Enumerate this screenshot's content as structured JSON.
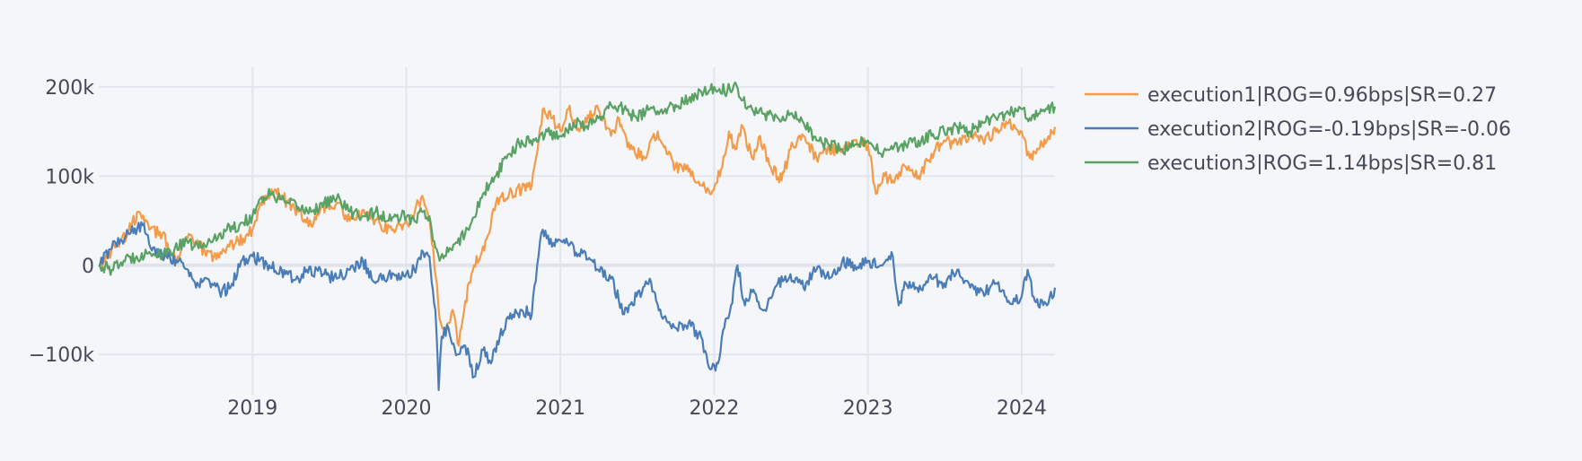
{
  "chart_data": {
    "type": "line",
    "title": "",
    "xlabel": "",
    "ylabel": "",
    "x_ticks": [
      {
        "label": "2019",
        "date": "2019-01-01"
      },
      {
        "label": "2020",
        "date": "2020-01-01"
      },
      {
        "label": "2021",
        "date": "2021-01-01"
      },
      {
        "label": "2022",
        "date": "2022-01-01"
      },
      {
        "label": "2023",
        "date": "2023-01-01"
      },
      {
        "label": "2024",
        "date": "2024-01-01"
      }
    ],
    "y_ticks": [
      {
        "label": "200k",
        "value": 200000
      },
      {
        "label": "100k",
        "value": 100000
      },
      {
        "label": "0",
        "value": 0
      },
      {
        "label": "−100k",
        "value": -100000
      }
    ],
    "xlim": [
      "2018-01-01",
      "2024-03-20"
    ],
    "ylim": [
      -145000,
      222000
    ],
    "grid": true,
    "legend_position": "right",
    "series": [
      {
        "name": "execution1|ROG=0.96bps|SR=0.27",
        "color": "#f39b48",
        "points": [
          [
            "2018-01-01",
            0
          ],
          [
            "2018-02-15",
            25000
          ],
          [
            "2018-03-10",
            35000
          ],
          [
            "2018-04-05",
            60000
          ],
          [
            "2018-05-01",
            40000
          ],
          [
            "2018-06-01",
            35000
          ],
          [
            "2018-07-05",
            5000
          ],
          [
            "2018-07-25",
            30000
          ],
          [
            "2018-08-20",
            25000
          ],
          [
            "2018-09-10",
            15000
          ],
          [
            "2018-10-01",
            10000
          ],
          [
            "2018-11-01",
            20000
          ],
          [
            "2018-12-10",
            30000
          ],
          [
            "2019-01-01",
            40000
          ],
          [
            "2019-01-20",
            70000
          ],
          [
            "2019-02-15",
            85000
          ],
          [
            "2019-03-15",
            75000
          ],
          [
            "2019-04-20",
            60000
          ],
          [
            "2019-05-20",
            45000
          ],
          [
            "2019-06-15",
            65000
          ],
          [
            "2019-07-20",
            70000
          ],
          [
            "2019-08-20",
            50000
          ],
          [
            "2019-10-01",
            60000
          ],
          [
            "2019-11-01",
            45000
          ],
          [
            "2019-12-01",
            40000
          ],
          [
            "2020-01-10",
            50000
          ],
          [
            "2020-02-05",
            75000
          ],
          [
            "2020-02-20",
            60000
          ],
          [
            "2020-03-05",
            20000
          ],
          [
            "2020-03-20",
            -60000
          ],
          [
            "2020-04-05",
            -70000
          ],
          [
            "2020-04-20",
            -50000
          ],
          [
            "2020-05-05",
            -90000
          ],
          [
            "2020-05-20",
            -40000
          ],
          [
            "2020-06-10",
            0
          ],
          [
            "2020-06-25",
            10000
          ],
          [
            "2020-07-10",
            30000
          ],
          [
            "2020-08-01",
            70000
          ],
          [
            "2020-09-01",
            80000
          ],
          [
            "2020-10-01",
            85000
          ],
          [
            "2020-10-25",
            90000
          ],
          [
            "2020-11-08",
            130000
          ],
          [
            "2020-11-20",
            175000
          ],
          [
            "2020-12-10",
            165000
          ],
          [
            "2021-01-01",
            150000
          ],
          [
            "2021-01-20",
            175000
          ],
          [
            "2021-02-15",
            150000
          ],
          [
            "2021-03-10",
            165000
          ],
          [
            "2021-04-01",
            175000
          ],
          [
            "2021-05-01",
            145000
          ],
          [
            "2021-05-20",
            165000
          ],
          [
            "2021-06-15",
            130000
          ],
          [
            "2021-07-20",
            120000
          ],
          [
            "2021-08-20",
            150000
          ],
          [
            "2021-09-10",
            125000
          ],
          [
            "2021-10-01",
            110000
          ],
          [
            "2021-11-01",
            105000
          ],
          [
            "2021-12-01",
            90000
          ],
          [
            "2021-12-25",
            80000
          ],
          [
            "2022-01-20",
            110000
          ],
          [
            "2022-02-05",
            150000
          ],
          [
            "2022-02-20",
            130000
          ],
          [
            "2022-03-10",
            155000
          ],
          [
            "2022-04-01",
            120000
          ],
          [
            "2022-04-20",
            145000
          ],
          [
            "2022-05-15",
            110000
          ],
          [
            "2022-06-10",
            95000
          ],
          [
            "2022-07-01",
            130000
          ],
          [
            "2022-08-01",
            145000
          ],
          [
            "2022-09-01",
            120000
          ],
          [
            "2022-10-01",
            130000
          ],
          [
            "2022-11-01",
            130000
          ],
          [
            "2022-12-01",
            140000
          ],
          [
            "2023-01-01",
            135000
          ],
          [
            "2023-01-20",
            80000
          ],
          [
            "2023-02-10",
            100000
          ],
          [
            "2023-03-01",
            95000
          ],
          [
            "2023-04-01",
            110000
          ],
          [
            "2023-05-01",
            100000
          ],
          [
            "2023-06-01",
            125000
          ],
          [
            "2023-07-01",
            140000
          ],
          [
            "2023-08-01",
            135000
          ],
          [
            "2023-09-01",
            145000
          ],
          [
            "2023-10-01",
            140000
          ],
          [
            "2023-11-01",
            150000
          ],
          [
            "2023-12-01",
            160000
          ],
          [
            "2024-01-01",
            150000
          ],
          [
            "2024-01-20",
            120000
          ],
          [
            "2024-02-10",
            130000
          ],
          [
            "2024-03-01",
            140000
          ],
          [
            "2024-03-20",
            155000
          ]
        ]
      },
      {
        "name": "execution2|ROG=-0.19bps|SR=-0.06",
        "color": "#4a7db7",
        "points": [
          [
            "2018-01-01",
            0
          ],
          [
            "2018-02-10",
            25000
          ],
          [
            "2018-03-15",
            35000
          ],
          [
            "2018-04-15",
            45000
          ],
          [
            "2018-05-10",
            20000
          ],
          [
            "2018-06-10",
            10000
          ],
          [
            "2018-07-10",
            5000
          ],
          [
            "2018-08-01",
            -5000
          ],
          [
            "2018-08-20",
            -25000
          ],
          [
            "2018-09-15",
            -15000
          ],
          [
            "2018-10-15",
            -30000
          ],
          [
            "2018-11-10",
            -25000
          ],
          [
            "2018-12-05",
            5000
          ],
          [
            "2019-01-01",
            10000
          ],
          [
            "2019-02-10",
            0
          ],
          [
            "2019-03-20",
            -10000
          ],
          [
            "2019-04-20",
            -15000
          ],
          [
            "2019-05-10",
            -5000
          ],
          [
            "2019-06-20",
            -10000
          ],
          [
            "2019-07-20",
            -15000
          ],
          [
            "2019-08-20",
            -5000
          ],
          [
            "2019-09-20",
            5000
          ],
          [
            "2019-10-20",
            -20000
          ],
          [
            "2019-11-20",
            -10000
          ],
          [
            "2019-12-20",
            -15000
          ],
          [
            "2020-01-20",
            -5000
          ],
          [
            "2020-02-10",
            15000
          ],
          [
            "2020-02-25",
            10000
          ],
          [
            "2020-03-10",
            -50000
          ],
          [
            "2020-03-18",
            -140000
          ],
          [
            "2020-03-25",
            -80000
          ],
          [
            "2020-04-10",
            -70000
          ],
          [
            "2020-05-01",
            -100000
          ],
          [
            "2020-05-20",
            -90000
          ],
          [
            "2020-06-10",
            -125000
          ],
          [
            "2020-07-01",
            -95000
          ],
          [
            "2020-07-20",
            -110000
          ],
          [
            "2020-08-10",
            -80000
          ],
          [
            "2020-09-01",
            -60000
          ],
          [
            "2020-10-01",
            -50000
          ],
          [
            "2020-10-25",
            -55000
          ],
          [
            "2020-11-10",
            10000
          ],
          [
            "2020-11-20",
            40000
          ],
          [
            "2020-12-15",
            25000
          ],
          [
            "2021-01-15",
            30000
          ],
          [
            "2021-02-10",
            10000
          ],
          [
            "2021-03-01",
            15000
          ],
          [
            "2021-04-01",
            -5000
          ],
          [
            "2021-05-01",
            -15000
          ],
          [
            "2021-06-01",
            -55000
          ],
          [
            "2021-07-01",
            -35000
          ],
          [
            "2021-08-01",
            -15000
          ],
          [
            "2021-09-01",
            -60000
          ],
          [
            "2021-10-01",
            -70000
          ],
          [
            "2021-11-01",
            -65000
          ],
          [
            "2021-12-01",
            -80000
          ],
          [
            "2021-12-20",
            -115000
          ],
          [
            "2022-01-10",
            -110000
          ],
          [
            "2022-01-25",
            -70000
          ],
          [
            "2022-02-10",
            -45000
          ],
          [
            "2022-02-25",
            0
          ],
          [
            "2022-03-15",
            -45000
          ],
          [
            "2022-04-01",
            -30000
          ],
          [
            "2022-05-01",
            -50000
          ],
          [
            "2022-06-01",
            -20000
          ],
          [
            "2022-07-01",
            -10000
          ],
          [
            "2022-08-01",
            -25000
          ],
          [
            "2022-09-01",
            -5000
          ],
          [
            "2022-10-01",
            -15000
          ],
          [
            "2022-11-01",
            5000
          ],
          [
            "2022-12-01",
            0
          ],
          [
            "2023-01-01",
            5000
          ],
          [
            "2023-02-01",
            0
          ],
          [
            "2023-02-20",
            10000
          ],
          [
            "2023-03-01",
            10000
          ],
          [
            "2023-03-15",
            -45000
          ],
          [
            "2023-04-01",
            -20000
          ],
          [
            "2023-05-01",
            -30000
          ],
          [
            "2023-06-01",
            -15000
          ],
          [
            "2023-07-01",
            -20000
          ],
          [
            "2023-08-01",
            -5000
          ],
          [
            "2023-09-01",
            -25000
          ],
          [
            "2023-10-01",
            -30000
          ],
          [
            "2023-11-01",
            -20000
          ],
          [
            "2023-12-01",
            -40000
          ],
          [
            "2024-01-01",
            -35000
          ],
          [
            "2024-01-15",
            -5000
          ],
          [
            "2024-02-01",
            -40000
          ],
          [
            "2024-03-01",
            -45000
          ],
          [
            "2024-03-20",
            -25000
          ]
        ]
      },
      {
        "name": "execution3|ROG=1.14bps|SR=0.81",
        "color": "#5aa264",
        "points": [
          [
            "2018-01-01",
            0
          ],
          [
            "2018-02-01",
            -5000
          ],
          [
            "2018-03-01",
            5000
          ],
          [
            "2018-04-01",
            10000
          ],
          [
            "2018-05-01",
            15000
          ],
          [
            "2018-06-01",
            10000
          ],
          [
            "2018-07-01",
            20000
          ],
          [
            "2018-08-01",
            25000
          ],
          [
            "2018-09-01",
            20000
          ],
          [
            "2018-10-01",
            30000
          ],
          [
            "2018-11-01",
            40000
          ],
          [
            "2018-12-01",
            45000
          ],
          [
            "2019-01-01",
            55000
          ],
          [
            "2019-01-20",
            75000
          ],
          [
            "2019-02-15",
            80000
          ],
          [
            "2019-03-20",
            70000
          ],
          [
            "2019-04-20",
            65000
          ],
          [
            "2019-05-20",
            60000
          ],
          [
            "2019-06-20",
            70000
          ],
          [
            "2019-07-20",
            75000
          ],
          [
            "2019-08-20",
            60000
          ],
          [
            "2019-09-20",
            55000
          ],
          [
            "2019-10-20",
            60000
          ],
          [
            "2019-11-20",
            50000
          ],
          [
            "2019-12-20",
            55000
          ],
          [
            "2020-01-20",
            50000
          ],
          [
            "2020-02-10",
            60000
          ],
          [
            "2020-02-25",
            55000
          ],
          [
            "2020-03-10",
            20000
          ],
          [
            "2020-03-20",
            5000
          ],
          [
            "2020-04-10",
            15000
          ],
          [
            "2020-05-01",
            25000
          ],
          [
            "2020-06-01",
            45000
          ],
          [
            "2020-07-01",
            80000
          ],
          [
            "2020-08-01",
            100000
          ],
          [
            "2020-09-01",
            125000
          ],
          [
            "2020-10-01",
            140000
          ],
          [
            "2020-11-01",
            140000
          ],
          [
            "2020-12-01",
            150000
          ],
          [
            "2021-01-01",
            145000
          ],
          [
            "2021-02-01",
            160000
          ],
          [
            "2021-03-01",
            155000
          ],
          [
            "2021-04-01",
            165000
          ],
          [
            "2021-05-01",
            180000
          ],
          [
            "2021-06-01",
            175000
          ],
          [
            "2021-07-01",
            165000
          ],
          [
            "2021-08-01",
            175000
          ],
          [
            "2021-09-01",
            170000
          ],
          [
            "2021-10-01",
            180000
          ],
          [
            "2021-11-01",
            185000
          ],
          [
            "2021-12-01",
            195000
          ],
          [
            "2022-01-01",
            200000
          ],
          [
            "2022-02-01",
            195000
          ],
          [
            "2022-02-20",
            205000
          ],
          [
            "2022-03-10",
            185000
          ],
          [
            "2022-04-01",
            175000
          ],
          [
            "2022-05-01",
            170000
          ],
          [
            "2022-06-01",
            165000
          ],
          [
            "2022-07-01",
            170000
          ],
          [
            "2022-08-01",
            160000
          ],
          [
            "2022-09-01",
            140000
          ],
          [
            "2022-10-01",
            135000
          ],
          [
            "2022-11-01",
            130000
          ],
          [
            "2022-12-01",
            135000
          ],
          [
            "2023-01-01",
            140000
          ],
          [
            "2023-02-01",
            125000
          ],
          [
            "2023-03-01",
            130000
          ],
          [
            "2023-04-01",
            135000
          ],
          [
            "2023-05-01",
            140000
          ],
          [
            "2023-06-01",
            145000
          ],
          [
            "2023-07-01",
            150000
          ],
          [
            "2023-08-01",
            155000
          ],
          [
            "2023-09-01",
            150000
          ],
          [
            "2023-10-01",
            160000
          ],
          [
            "2023-11-01",
            165000
          ],
          [
            "2023-12-01",
            170000
          ],
          [
            "2024-01-01",
            175000
          ],
          [
            "2024-01-20",
            165000
          ],
          [
            "2024-02-10",
            170000
          ],
          [
            "2024-03-01",
            175000
          ],
          [
            "2024-03-20",
            178000
          ]
        ]
      }
    ]
  }
}
